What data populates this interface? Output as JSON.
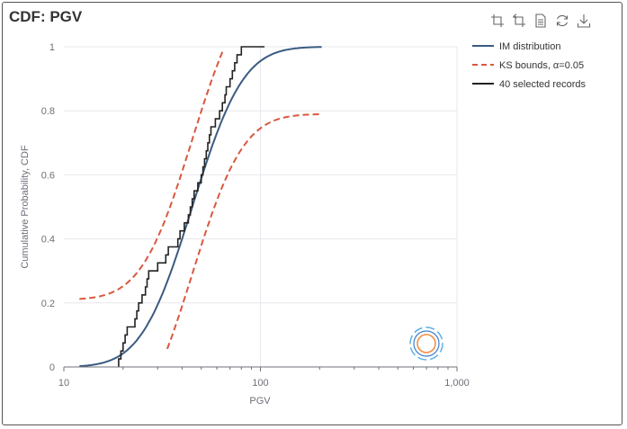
{
  "title": "CDF: PGV",
  "toolbox": [
    {
      "name": "zoom-icon",
      "tooltip": "Zoom"
    },
    {
      "name": "zoom-reset-icon",
      "tooltip": "Zoom reset"
    },
    {
      "name": "data-view-icon",
      "tooltip": "Data view"
    },
    {
      "name": "restore-icon",
      "tooltip": "Restore"
    },
    {
      "name": "save-image-icon",
      "tooltip": "Save as image"
    }
  ],
  "colors": {
    "im": "#3b5b82",
    "ks": "#d9583f",
    "records": "#222222",
    "grid": "#e8e8ee",
    "axis": "#6e7079"
  },
  "chart_data": {
    "type": "line",
    "xlabel": "PGV",
    "ylabel": "Cumulative Probability, CDF",
    "xscale": "log",
    "xlim": [
      10,
      1000
    ],
    "ylim": [
      0,
      1
    ],
    "xticks": [
      {
        "v": 10,
        "label": "10"
      },
      {
        "v": 100,
        "label": "100"
      },
      {
        "v": 1000,
        "label": "1,000"
      }
    ],
    "yticks": [
      {
        "v": 0,
        "label": "0"
      },
      {
        "v": 0.2,
        "label": "0.2"
      },
      {
        "v": 0.4,
        "label": "0.4"
      },
      {
        "v": 0.6,
        "label": "0.6"
      },
      {
        "v": 0.8,
        "label": "0.8"
      },
      {
        "v": 1,
        "label": "1"
      }
    ],
    "grid": true,
    "legend_position": "right",
    "im_distribution": {
      "median": 45,
      "lnstd": 0.47,
      "x_range": [
        12,
        205
      ]
    },
    "ks_bounds": {
      "delta": 0.21,
      "lower_x_min": 33,
      "upper_x_max": 67
    },
    "series": [
      {
        "name": "IM distribution",
        "style": "solid"
      },
      {
        "name": "KS bounds, α=0.05",
        "style": "dashed"
      },
      {
        "name": "40 selected records",
        "style": "step"
      }
    ],
    "records": [
      19,
      19.5,
      20,
      20.5,
      21,
      23,
      23.5,
      24,
      25,
      26,
      26.5,
      27,
      30,
      33,
      34,
      38,
      39,
      41,
      43,
      44,
      45,
      46,
      48,
      50,
      51,
      52,
      53,
      54,
      55,
      56,
      59,
      62,
      64,
      66,
      67,
      70,
      72,
      74,
      76,
      80
    ],
    "records_x_end": 105
  }
}
